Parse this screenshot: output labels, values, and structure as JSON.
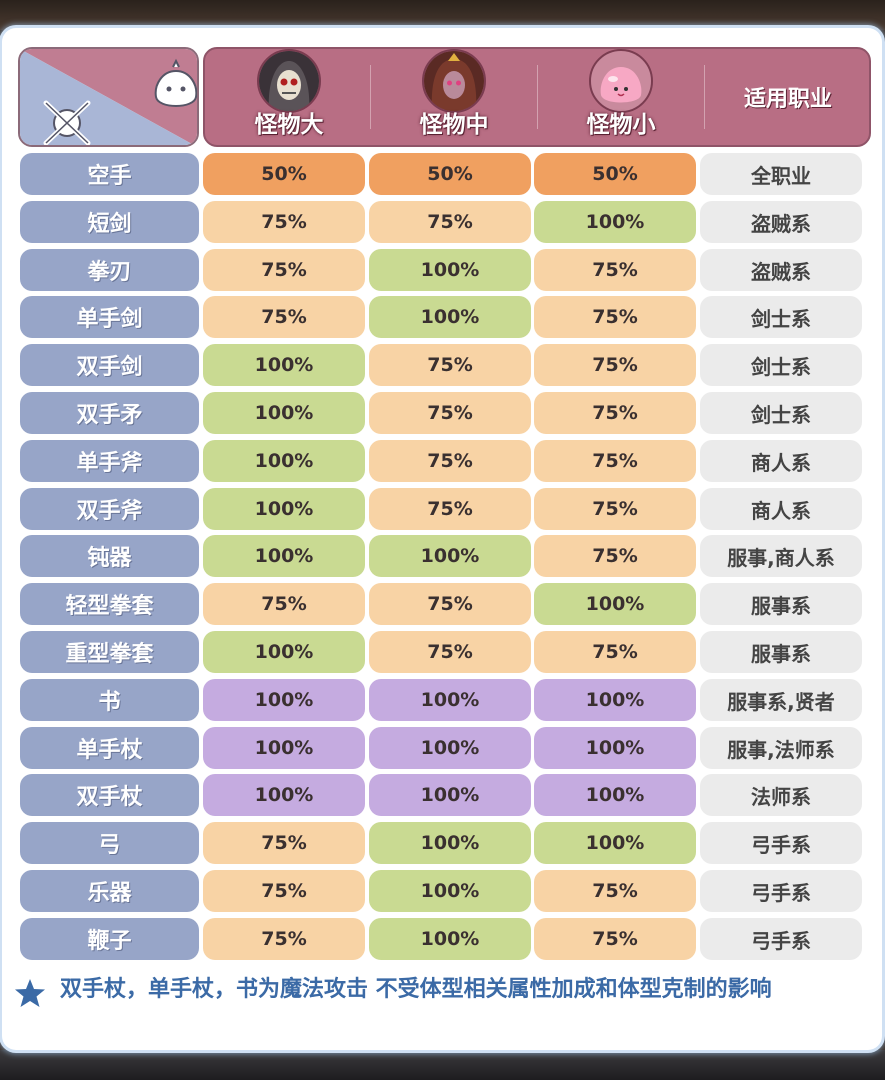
{
  "header": {
    "columns": [
      {
        "label": "怪物大",
        "icon": "skull-monster-icon"
      },
      {
        "label": "怪物中",
        "icon": "girl-monster-icon"
      },
      {
        "label": "怪物小",
        "icon": "poring-monster-icon"
      }
    ],
    "job_label": "适用职业"
  },
  "rows": [
    {
      "weapon": "空手",
      "large": "50%",
      "medium": "50%",
      "small": "50%",
      "job": "全职业",
      "colors": [
        "orange",
        "orange",
        "orange"
      ]
    },
    {
      "weapon": "短剑",
      "large": "75%",
      "medium": "75%",
      "small": "100%",
      "job": "盗贼系",
      "colors": [
        "peach",
        "peach",
        "green"
      ]
    },
    {
      "weapon": "拳刃",
      "large": "75%",
      "medium": "100%",
      "small": "75%",
      "job": "盗贼系",
      "colors": [
        "peach",
        "green",
        "peach"
      ]
    },
    {
      "weapon": "单手剑",
      "large": "75%",
      "medium": "100%",
      "small": "75%",
      "job": "剑士系",
      "colors": [
        "peach",
        "green",
        "peach"
      ]
    },
    {
      "weapon": "双手剑",
      "large": "100%",
      "medium": "75%",
      "small": "75%",
      "job": "剑士系",
      "colors": [
        "green",
        "peach",
        "peach"
      ]
    },
    {
      "weapon": "双手矛",
      "large": "100%",
      "medium": "75%",
      "small": "75%",
      "job": "剑士系",
      "colors": [
        "green",
        "peach",
        "peach"
      ]
    },
    {
      "weapon": "单手斧",
      "large": "100%",
      "medium": "75%",
      "small": "75%",
      "job": "商人系",
      "colors": [
        "green",
        "peach",
        "peach"
      ]
    },
    {
      "weapon": "双手斧",
      "large": "100%",
      "medium": "75%",
      "small": "75%",
      "job": "商人系",
      "colors": [
        "green",
        "peach",
        "peach"
      ]
    },
    {
      "weapon": "钝器",
      "large": "100%",
      "medium": "100%",
      "small": "75%",
      "job": "服事,商人系",
      "colors": [
        "green",
        "green",
        "peach"
      ]
    },
    {
      "weapon": "轻型拳套",
      "large": "75%",
      "medium": "75%",
      "small": "100%",
      "job": "服事系",
      "colors": [
        "peach",
        "peach",
        "green"
      ]
    },
    {
      "weapon": "重型拳套",
      "large": "100%",
      "medium": "75%",
      "small": "75%",
      "job": "服事系",
      "colors": [
        "green",
        "peach",
        "peach"
      ]
    },
    {
      "weapon": "书",
      "large": "100%",
      "medium": "100%",
      "small": "100%",
      "job": "服事系,贤者",
      "colors": [
        "purple",
        "purple",
        "purple"
      ]
    },
    {
      "weapon": "单手杖",
      "large": "100%",
      "medium": "100%",
      "small": "100%",
      "job": "服事,法师系",
      "colors": [
        "purple",
        "purple",
        "purple"
      ]
    },
    {
      "weapon": "双手杖",
      "large": "100%",
      "medium": "100%",
      "small": "100%",
      "job": "法师系",
      "colors": [
        "purple",
        "purple",
        "purple"
      ]
    },
    {
      "weapon": "弓",
      "large": "75%",
      "medium": "100%",
      "small": "100%",
      "job": "弓手系",
      "colors": [
        "peach",
        "green",
        "green"
      ]
    },
    {
      "weapon": "乐器",
      "large": "75%",
      "medium": "100%",
      "small": "75%",
      "job": "弓手系",
      "colors": [
        "peach",
        "green",
        "peach"
      ]
    },
    {
      "weapon": "鞭子",
      "large": "75%",
      "medium": "100%",
      "small": "75%",
      "job": "弓手系",
      "colors": [
        "peach",
        "green",
        "peach"
      ]
    }
  ],
  "note": {
    "icon": "star-icon",
    "text": "双手杖，单手杖，书为魔法攻击  不受体型相关属性加成和体型克制的影响"
  },
  "palette": {
    "orange": "#f0a060",
    "peach": "#f8d3a5",
    "green": "#c9da92",
    "purple": "#c5abe0",
    "weapon": "#97a5c8",
    "job": "#ebebeb",
    "header": "#b86e84"
  }
}
